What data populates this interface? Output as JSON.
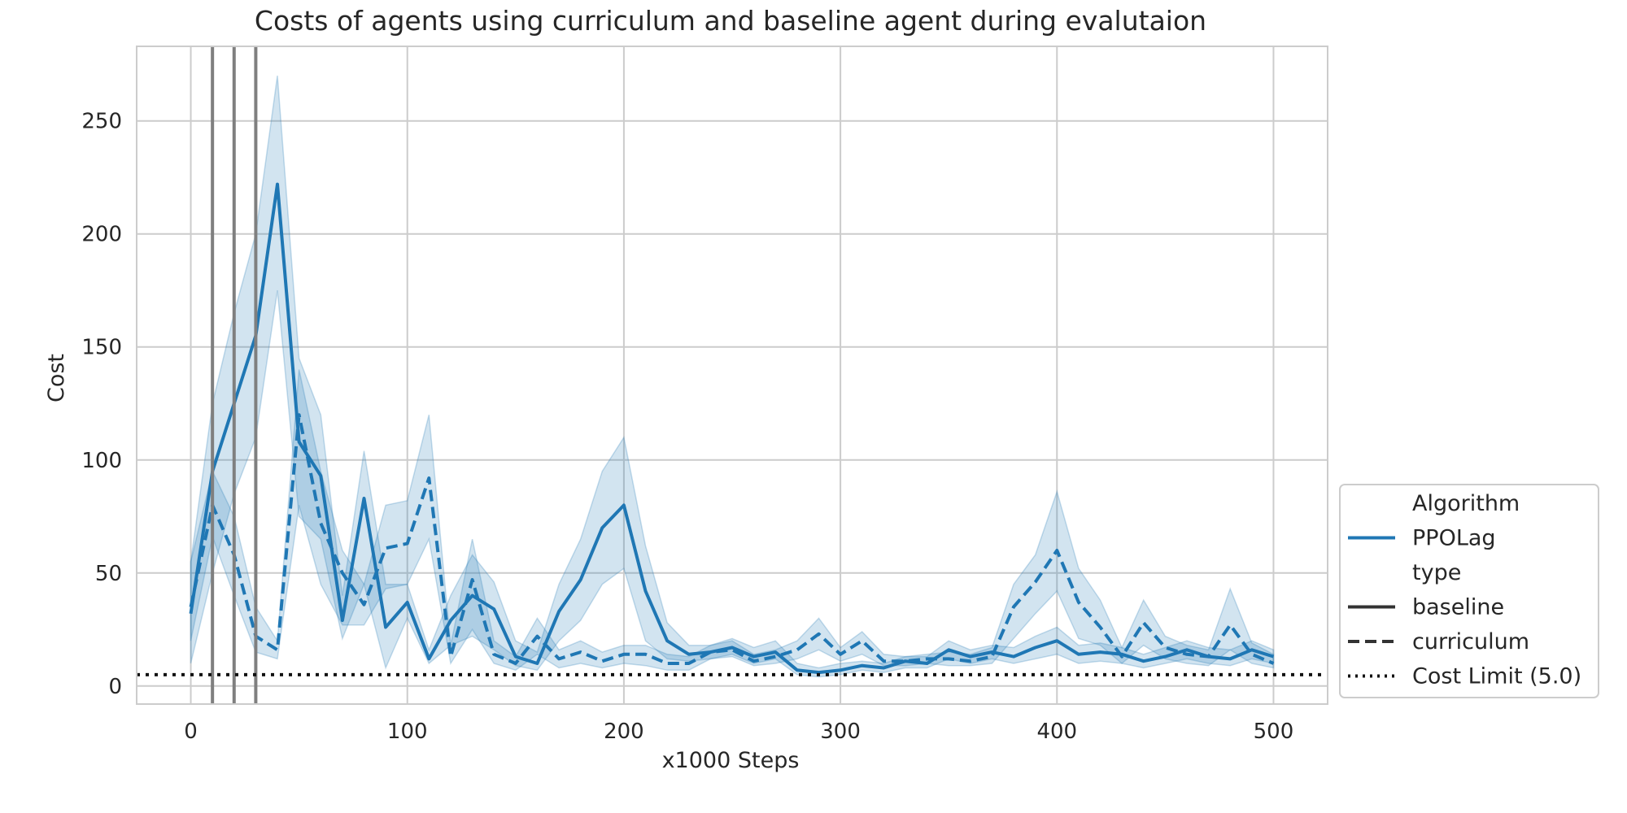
{
  "chart_data": {
    "type": "line",
    "title": "Costs of agents using curriculum and baseline agent during evalutaion",
    "xlabel": "x1000 Steps",
    "ylabel": "Cost",
    "xlim": [
      -25,
      525
    ],
    "ylim": [
      -8,
      283
    ],
    "xticks": [
      0,
      100,
      200,
      300,
      400,
      500
    ],
    "yticks": [
      0,
      50,
      100,
      150,
      200,
      250
    ],
    "grid": true,
    "color": "#1f77b4",
    "x": [
      0,
      10,
      20,
      30,
      40,
      50,
      60,
      70,
      80,
      90,
      100,
      110,
      120,
      130,
      140,
      150,
      160,
      170,
      180,
      190,
      200,
      210,
      220,
      230,
      240,
      250,
      260,
      270,
      280,
      290,
      300,
      310,
      320,
      330,
      340,
      350,
      360,
      370,
      380,
      390,
      400,
      410,
      420,
      430,
      440,
      450,
      460,
      470,
      480,
      490,
      500
    ],
    "series": [
      {
        "name": "baseline",
        "dash": "solid",
        "values": [
          32,
          95,
          125,
          155,
          222,
          108,
          93,
          29,
          83,
          26,
          37,
          12,
          29,
          40,
          34,
          13,
          10,
          33,
          47,
          70,
          80,
          42,
          20,
          14,
          15,
          17,
          13,
          15,
          7,
          6,
          7,
          9,
          8,
          11,
          10,
          16,
          13,
          15,
          13,
          17,
          20,
          14,
          15,
          14,
          11,
          13,
          16,
          13,
          12,
          16,
          13
        ],
        "lower": [
          10,
          50,
          85,
          110,
          175,
          75,
          65,
          21,
          45,
          8,
          30,
          10,
          18,
          22,
          16,
          9,
          7,
          20,
          29,
          45,
          52,
          20,
          12,
          11,
          12,
          14,
          10,
          12,
          5,
          4,
          5,
          7,
          6,
          8,
          8,
          12,
          10,
          12,
          10,
          12,
          14,
          10,
          11,
          10,
          8,
          10,
          12,
          10,
          9,
          12,
          10
        ],
        "upper": [
          55,
          125,
          165,
          200,
          270,
          145,
          120,
          40,
          104,
          45,
          45,
          16,
          40,
          58,
          46,
          20,
          15,
          45,
          65,
          95,
          110,
          62,
          28,
          18,
          18,
          21,
          17,
          20,
          10,
          8,
          10,
          11,
          10,
          13,
          13,
          20,
          16,
          18,
          17,
          22,
          26,
          18,
          19,
          17,
          14,
          17,
          20,
          17,
          16,
          20,
          16
        ]
      },
      {
        "name": "curriculum",
        "dash": "dashed",
        "values": [
          35,
          80,
          58,
          22,
          16,
          120,
          72,
          50,
          36,
          61,
          63,
          92,
          13,
          47,
          14,
          10,
          22,
          12,
          15,
          11,
          14,
          14,
          10,
          10,
          15,
          16,
          11,
          13,
          16,
          23,
          14,
          20,
          11,
          11,
          12,
          12,
          11,
          13,
          35,
          46,
          60,
          37,
          26,
          13,
          28,
          17,
          14,
          13,
          27,
          14,
          10
        ],
        "lower": [
          20,
          66,
          40,
          15,
          12,
          80,
          45,
          27,
          27,
          43,
          45,
          65,
          10,
          25,
          10,
          7,
          14,
          8,
          10,
          8,
          10,
          9,
          7,
          7,
          12,
          13,
          9,
          10,
          12,
          16,
          11,
          14,
          9,
          9,
          10,
          9,
          9,
          10,
          21,
          32,
          42,
          21,
          18,
          10,
          18,
          12,
          10,
          9,
          16,
          10,
          8
        ],
        "upper": [
          55,
          95,
          75,
          35,
          20,
          140,
          95,
          60,
          45,
          80,
          82,
          120,
          18,
          65,
          20,
          13,
          30,
          16,
          20,
          15,
          18,
          18,
          14,
          13,
          18,
          20,
          14,
          16,
          20,
          30,
          17,
          24,
          14,
          13,
          14,
          15,
          14,
          17,
          45,
          58,
          86,
          52,
          38,
          17,
          38,
          22,
          18,
          16,
          43,
          19,
          14
        ]
      }
    ],
    "cost_limit": 5.0,
    "vertical_lines": [
      10,
      20,
      30
    ],
    "legend": {
      "placement": "outside-right-bottom",
      "entries": [
        {
          "kind": "header",
          "label": "Algorithm"
        },
        {
          "kind": "solid",
          "label": "PPOLag",
          "color": "#1f77b4"
        },
        {
          "kind": "header",
          "label": "type"
        },
        {
          "kind": "solid",
          "label": "baseline",
          "color": "#333333"
        },
        {
          "kind": "dashed",
          "label": "curriculum",
          "color": "#333333"
        },
        {
          "kind": "dotted",
          "label": "Cost Limit (5.0)",
          "color": "#111111"
        }
      ]
    }
  }
}
